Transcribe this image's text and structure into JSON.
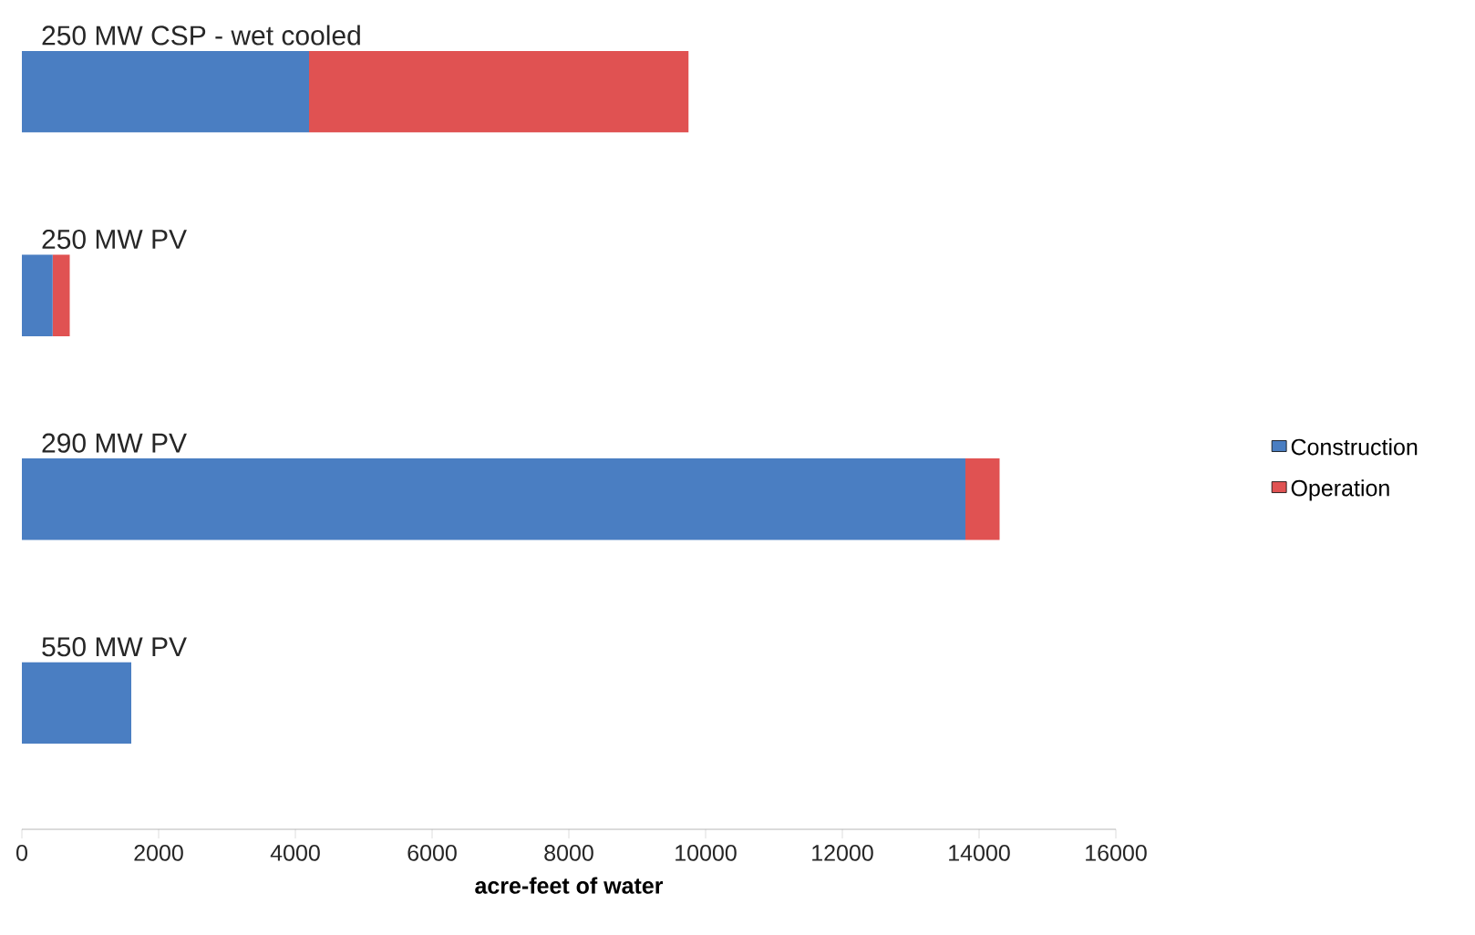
{
  "chart_data": {
    "type": "bar",
    "orientation": "horizontal",
    "stacked": true,
    "xlabel": "acre-feet of water",
    "categories": [
      "250 MW CSP - wet cooled",
      "250 MW PV",
      "290 MW PV",
      "550 MW PV"
    ],
    "series": [
      {
        "name": "Construction",
        "color": "#4a7ec2",
        "values": [
          4200,
          450,
          13800,
          1600
        ]
      },
      {
        "name": "Operation",
        "color": "#e05252",
        "values": [
          5550,
          250,
          500,
          0
        ]
      }
    ],
    "xlim": [
      0,
      16000
    ],
    "xticks": [
      0,
      2000,
      4000,
      6000,
      8000,
      10000,
      12000,
      14000,
      16000
    ],
    "grid": false,
    "legend": "right"
  }
}
